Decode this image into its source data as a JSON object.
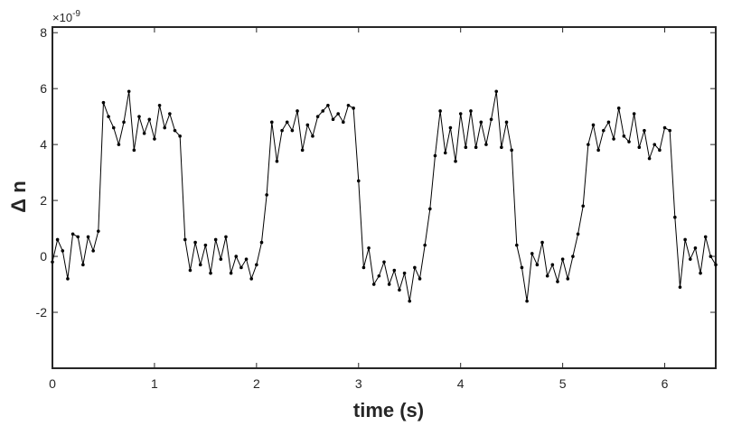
{
  "chart_data": {
    "type": "line",
    "xlabel": "time (s)",
    "ylabel": "Δ n",
    "y_exponent": {
      "base": "×10",
      "power": "-9"
    },
    "xlim": [
      0,
      6.5
    ],
    "xticks": [
      0,
      1,
      2,
      3,
      4,
      5,
      6
    ],
    "ylim": [
      -4,
      8.2
    ],
    "yticks": [
      -2,
      0,
      2,
      4,
      6,
      8
    ],
    "grid": false,
    "marker": true,
    "x": [
      0,
      0.05,
      0.1,
      0.15,
      0.2,
      0.25,
      0.3,
      0.35,
      0.4,
      0.45,
      0.5,
      0.55,
      0.6,
      0.65,
      0.7,
      0.75,
      0.8,
      0.85,
      0.9,
      0.95,
      1,
      1.05,
      1.1,
      1.15,
      1.2,
      1.25,
      1.3,
      1.35,
      1.4,
      1.45,
      1.5,
      1.55,
      1.6,
      1.65,
      1.7,
      1.75,
      1.8,
      1.85,
      1.9,
      1.95,
      2,
      2.05,
      2.1,
      2.15,
      2.2,
      2.25,
      2.3,
      2.35,
      2.4,
      2.45,
      2.5,
      2.55,
      2.6,
      2.65,
      2.7,
      2.75,
      2.8,
      2.85,
      2.9,
      2.95,
      3,
      3.05,
      3.1,
      3.15,
      3.2,
      3.25,
      3.3,
      3.35,
      3.4,
      3.45,
      3.5,
      3.55,
      3.6,
      3.65,
      3.7,
      3.75,
      3.8,
      3.85,
      3.9,
      3.95,
      4,
      4.05,
      4.1,
      4.15,
      4.2,
      4.25,
      4.3,
      4.35,
      4.4,
      4.45,
      4.5,
      4.55,
      4.6,
      4.65,
      4.7,
      4.75,
      4.8,
      4.85,
      4.9,
      4.95,
      5,
      5.05,
      5.1,
      5.15,
      5.2,
      5.25,
      5.3,
      5.35,
      5.4,
      5.45,
      5.5,
      5.55,
      5.6,
      5.65,
      5.7,
      5.75,
      5.8,
      5.85,
      5.9,
      5.95,
      6,
      6.05,
      6.1,
      6.15,
      6.2,
      6.25,
      6.3,
      6.35,
      6.4,
      6.45,
      6.5
    ],
    "series": [
      {
        "color": "#000000",
        "values": [
          -0.2,
          0.6,
          0.2,
          -0.8,
          0.8,
          0.7,
          -0.3,
          0.7,
          0.2,
          0.9,
          5.5,
          5.0,
          4.6,
          4.0,
          4.8,
          5.9,
          3.8,
          5.0,
          4.4,
          4.9,
          4.2,
          5.4,
          4.6,
          5.1,
          4.5,
          4.3,
          0.6,
          -0.5,
          0.5,
          -0.3,
          0.4,
          -0.6,
          0.6,
          -0.1,
          0.7,
          -0.6,
          0.0,
          -0.4,
          -0.1,
          -0.8,
          -0.3,
          0.5,
          2.2,
          4.8,
          3.4,
          4.5,
          4.8,
          4.5,
          5.2,
          3.8,
          4.7,
          4.3,
          5.0,
          5.2,
          5.4,
          4.9,
          5.1,
          4.8,
          5.4,
          5.3,
          2.7,
          -0.4,
          0.3,
          -1.0,
          -0.7,
          -0.2,
          -1.0,
          -0.5,
          -1.2,
          -0.6,
          -1.6,
          -0.4,
          -0.8,
          0.4,
          1.7,
          3.6,
          5.2,
          3.7,
          4.6,
          3.4,
          5.1,
          3.9,
          5.2,
          3.9,
          4.8,
          4.0,
          4.9,
          5.9,
          3.9,
          4.8,
          3.8,
          0.4,
          -0.4,
          -1.6,
          0.1,
          -0.3,
          0.5,
          -0.7,
          -0.3,
          -0.9,
          -0.1,
          -0.8,
          0.0,
          0.8,
          1.8,
          4.0,
          4.7,
          3.8,
          4.5,
          4.8,
          4.2,
          5.3,
          4.3,
          4.1,
          5.1,
          3.9,
          4.5,
          3.5,
          4.0,
          3.8,
          4.6,
          4.5,
          1.4,
          -1.1,
          0.6,
          -0.1,
          0.3,
          -0.6,
          0.7,
          0.0,
          -0.3
        ]
      }
    ]
  }
}
